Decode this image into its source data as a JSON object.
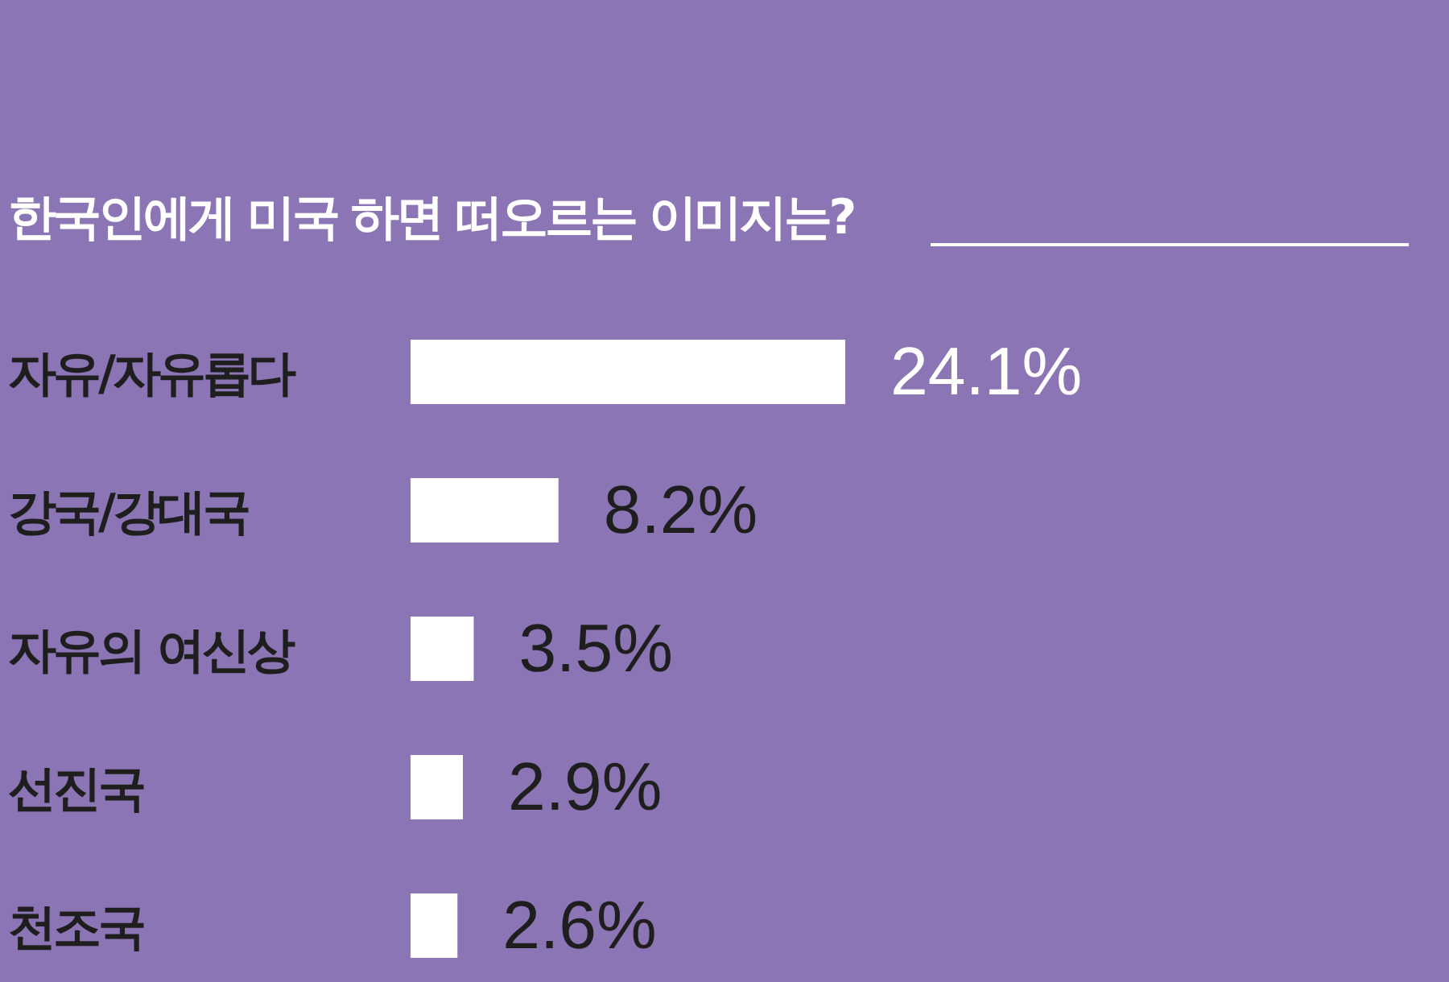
{
  "chart_data": {
    "type": "bar",
    "orientation": "horizontal",
    "title": "한국인에게 미국 하면 떠오르는 이미지는?",
    "categories": [
      "자유/자유롭다",
      "강국/강대국",
      "자유의 여신상",
      "선진국",
      "천조국"
    ],
    "values": [
      24.1,
      8.2,
      3.5,
      2.9,
      2.6
    ],
    "value_labels": [
      "24.1%",
      "8.2%",
      "3.5%",
      "2.9%",
      "2.6%"
    ],
    "color": "#ffffff",
    "grid": false,
    "legend": false
  }
}
